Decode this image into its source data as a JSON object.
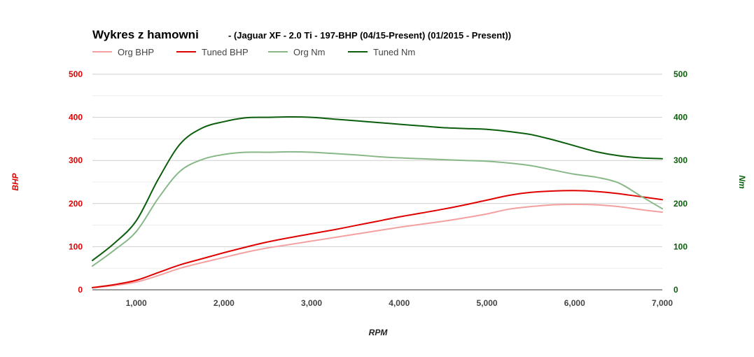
{
  "chart_data": {
    "type": "line",
    "title": "Wykres z hamowni",
    "subtitle": "- (Jaguar XF - 2.0 Ti - 197-BHP (04/15-Present) (01/2015 - Present))",
    "xlabel": "RPM",
    "ylabel_left": "BHP",
    "ylabel_right": "Nm",
    "xlim": [
      500,
      7000
    ],
    "ylim_left": [
      0,
      500
    ],
    "ylim_right": [
      0,
      500
    ],
    "x_ticks": [
      1000,
      2000,
      3000,
      4000,
      5000,
      6000,
      7000
    ],
    "x_tick_labels": [
      "1,000",
      "2,000",
      "3,000",
      "4,000",
      "5,000",
      "6,000",
      "7,000"
    ],
    "y_ticks": [
      0,
      100,
      200,
      300,
      400,
      500
    ],
    "y_tick_labels": [
      "0",
      "100",
      "200",
      "300",
      "400",
      "500"
    ],
    "grid": true,
    "legend_position": "top-left",
    "left_axis_color": "#e00000",
    "right_axis_color": "#0b5e0b",
    "series": [
      {
        "name": "Org BHP",
        "axis": "left",
        "color": "#f4a0a0",
        "x": [
          500,
          750,
          1000,
          1250,
          1500,
          1750,
          2000,
          2250,
          2500,
          2750,
          3000,
          3250,
          3500,
          3750,
          4000,
          4250,
          4500,
          4750,
          5000,
          5250,
          5500,
          5750,
          6000,
          6250,
          6500,
          6750,
          7000
        ],
        "values": [
          5,
          10,
          18,
          33,
          50,
          63,
          75,
          87,
          97,
          105,
          113,
          121,
          129,
          137,
          145,
          152,
          159,
          167,
          176,
          187,
          193,
          197,
          198,
          197,
          193,
          186,
          180
        ]
      },
      {
        "name": "Tuned BHP",
        "axis": "left",
        "color": "#e00000",
        "x": [
          500,
          750,
          1000,
          1250,
          1500,
          1750,
          2000,
          2250,
          2500,
          2750,
          3000,
          3250,
          3500,
          3750,
          4000,
          4250,
          4500,
          4750,
          5000,
          5250,
          5500,
          5750,
          6000,
          6250,
          6500,
          6750,
          7000
        ],
        "values": [
          5,
          12,
          22,
          40,
          58,
          72,
          86,
          99,
          111,
          121,
          130,
          139,
          149,
          159,
          169,
          178,
          187,
          197,
          208,
          219,
          226,
          229,
          230,
          228,
          223,
          216,
          209
        ]
      },
      {
        "name": "Org Nm",
        "axis": "right",
        "color": "#88b888",
        "x": [
          500,
          750,
          1000,
          1250,
          1500,
          1750,
          2000,
          2250,
          2500,
          2750,
          3000,
          3250,
          3500,
          3750,
          4000,
          4250,
          4500,
          4750,
          5000,
          5250,
          5500,
          5750,
          6000,
          6250,
          6500,
          6750,
          7000
        ],
        "values": [
          55,
          92,
          135,
          212,
          275,
          302,
          314,
          319,
          319,
          320,
          319,
          316,
          313,
          309,
          306,
          304,
          302,
          300,
          298,
          294,
          288,
          278,
          268,
          261,
          248,
          218,
          188
        ]
      },
      {
        "name": "Tuned Nm",
        "axis": "right",
        "color": "#0b5e0b",
        "x": [
          500,
          750,
          1000,
          1250,
          1500,
          1750,
          2000,
          2250,
          2500,
          2750,
          3000,
          3250,
          3500,
          3750,
          4000,
          4250,
          4500,
          4750,
          5000,
          5250,
          5500,
          5750,
          6000,
          6250,
          6500,
          6750,
          7000
        ],
        "values": [
          68,
          108,
          160,
          256,
          338,
          375,
          390,
          399,
          400,
          401,
          400,
          396,
          392,
          388,
          384,
          380,
          376,
          374,
          372,
          367,
          360,
          348,
          334,
          320,
          311,
          306,
          304
        ]
      }
    ]
  }
}
